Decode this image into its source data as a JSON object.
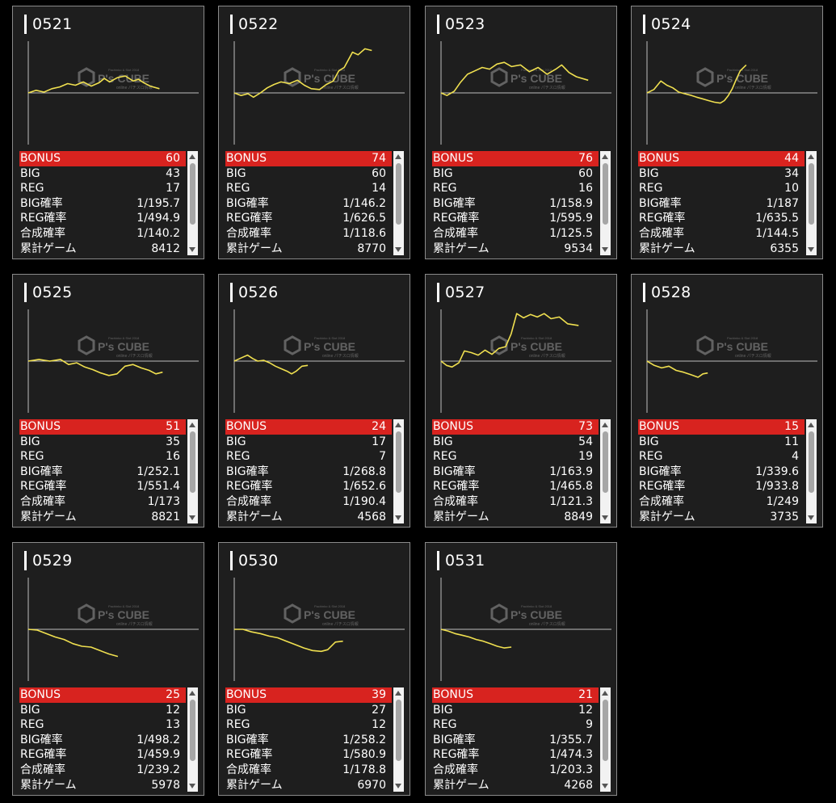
{
  "labels": {
    "bonus": "BONUS",
    "big": "BIG",
    "reg": "REG",
    "big_rate": "BIG確率",
    "reg_rate": "REG確率",
    "total_rate": "合成確率",
    "games": "累計ゲーム"
  },
  "watermark": {
    "brand": "P's CUBE",
    "top": "Pachinko & Slot 2018",
    "sub": "online パチスロ情報"
  },
  "colors": {
    "bonus_bar": "#d8231f",
    "graph_line": "#f0e050",
    "baseline": "#bfbfbf"
  },
  "machines": [
    {
      "id": "0521",
      "bonus": "60",
      "big": "43",
      "reg": "17",
      "big_rate": "1/195.7",
      "reg_rate": "1/494.9",
      "total_rate": "1/140.2",
      "games": "8412"
    },
    {
      "id": "0522",
      "bonus": "74",
      "big": "60",
      "reg": "14",
      "big_rate": "1/146.2",
      "reg_rate": "1/626.5",
      "total_rate": "1/118.6",
      "games": "8770"
    },
    {
      "id": "0523",
      "bonus": "76",
      "big": "60",
      "reg": "16",
      "big_rate": "1/158.9",
      "reg_rate": "1/595.9",
      "total_rate": "1/125.5",
      "games": "9534"
    },
    {
      "id": "0524",
      "bonus": "44",
      "big": "34",
      "reg": "10",
      "big_rate": "1/187",
      "reg_rate": "1/635.5",
      "total_rate": "1/144.5",
      "games": "6355"
    },
    {
      "id": "0525",
      "bonus": "51",
      "big": "35",
      "reg": "16",
      "big_rate": "1/252.1",
      "reg_rate": "1/551.4",
      "total_rate": "1/173",
      "games": "8821"
    },
    {
      "id": "0526",
      "bonus": "24",
      "big": "17",
      "reg": "7",
      "big_rate": "1/268.8",
      "reg_rate": "1/652.6",
      "total_rate": "1/190.4",
      "games": "4568"
    },
    {
      "id": "0527",
      "bonus": "73",
      "big": "54",
      "reg": "19",
      "big_rate": "1/163.9",
      "reg_rate": "1/465.8",
      "total_rate": "1/121.3",
      "games": "8849"
    },
    {
      "id": "0528",
      "bonus": "15",
      "big": "11",
      "reg": "4",
      "big_rate": "1/339.6",
      "reg_rate": "1/933.8",
      "total_rate": "1/249",
      "games": "3735"
    },
    {
      "id": "0529",
      "bonus": "25",
      "big": "12",
      "reg": "13",
      "big_rate": "1/498.2",
      "reg_rate": "1/459.9",
      "total_rate": "1/239.2",
      "games": "5978"
    },
    {
      "id": "0530",
      "bonus": "39",
      "big": "27",
      "reg": "12",
      "big_rate": "1/258.2",
      "reg_rate": "1/580.9",
      "total_rate": "1/178.8",
      "games": "6970"
    },
    {
      "id": "0531",
      "bonus": "21",
      "big": "12",
      "reg": "9",
      "big_rate": "1/355.7",
      "reg_rate": "1/474.3",
      "total_rate": "1/203.3",
      "games": "4268"
    }
  ],
  "graphs": [
    [
      [
        0,
        0
      ],
      [
        0.06,
        3
      ],
      [
        0.12,
        1
      ],
      [
        0.18,
        5
      ],
      [
        0.24,
        7
      ],
      [
        0.3,
        11
      ],
      [
        0.36,
        9
      ],
      [
        0.42,
        13
      ],
      [
        0.48,
        8
      ],
      [
        0.54,
        12
      ],
      [
        0.58,
        17
      ],
      [
        0.62,
        13
      ],
      [
        0.68,
        18
      ],
      [
        0.74,
        20
      ],
      [
        0.8,
        14
      ],
      [
        0.84,
        16
      ],
      [
        0.88,
        12
      ],
      [
        0.93,
        8
      ],
      [
        1,
        5
      ]
    ],
    [
      [
        0,
        0
      ],
      [
        0.05,
        -3
      ],
      [
        0.1,
        -1
      ],
      [
        0.14,
        -5
      ],
      [
        0.19,
        0
      ],
      [
        0.24,
        6
      ],
      [
        0.29,
        10
      ],
      [
        0.34,
        13
      ],
      [
        0.4,
        11
      ],
      [
        0.46,
        15
      ],
      [
        0.51,
        9
      ],
      [
        0.56,
        5
      ],
      [
        0.62,
        4
      ],
      [
        0.67,
        10
      ],
      [
        0.72,
        14
      ],
      [
        0.76,
        26
      ],
      [
        0.8,
        30
      ],
      [
        0.86,
        48
      ],
      [
        0.9,
        45
      ],
      [
        0.95,
        52
      ],
      [
        1,
        50
      ]
    ],
    [
      [
        0,
        0
      ],
      [
        0.04,
        -3
      ],
      [
        0.09,
        2
      ],
      [
        0.13,
        12
      ],
      [
        0.18,
        22
      ],
      [
        0.23,
        26
      ],
      [
        0.28,
        30
      ],
      [
        0.33,
        28
      ],
      [
        0.38,
        34
      ],
      [
        0.43,
        36
      ],
      [
        0.48,
        31
      ],
      [
        0.54,
        33
      ],
      [
        0.6,
        25
      ],
      [
        0.66,
        30
      ],
      [
        0.72,
        22
      ],
      [
        0.78,
        28
      ],
      [
        0.82,
        33
      ],
      [
        0.87,
        24
      ],
      [
        0.92,
        19
      ],
      [
        1,
        15
      ]
    ],
    [
      [
        0,
        0
      ],
      [
        0.07,
        4
      ],
      [
        0.14,
        14
      ],
      [
        0.2,
        9
      ],
      [
        0.26,
        6
      ],
      [
        0.32,
        1
      ],
      [
        0.38,
        -1
      ],
      [
        0.45,
        -3
      ],
      [
        0.5,
        -5
      ],
      [
        0.56,
        -7
      ],
      [
        0.62,
        -9
      ],
      [
        0.68,
        -11
      ],
      [
        0.74,
        -12
      ],
      [
        0.78,
        -9
      ],
      [
        0.82,
        -3
      ],
      [
        0.86,
        5
      ],
      [
        0.9,
        16
      ],
      [
        0.94,
        26
      ],
      [
        1,
        33
      ]
    ],
    [
      [
        0,
        0
      ],
      [
        0.08,
        2
      ],
      [
        0.16,
        0
      ],
      [
        0.24,
        2
      ],
      [
        0.3,
        -4
      ],
      [
        0.36,
        -2
      ],
      [
        0.42,
        -7
      ],
      [
        0.48,
        -10
      ],
      [
        0.54,
        -14
      ],
      [
        0.6,
        -17
      ],
      [
        0.66,
        -15
      ],
      [
        0.72,
        -6
      ],
      [
        0.78,
        -4
      ],
      [
        0.84,
        -8
      ],
      [
        0.9,
        -11
      ],
      [
        0.95,
        -15
      ],
      [
        1,
        -13
      ]
    ],
    [
      [
        0,
        0
      ],
      [
        0.1,
        4
      ],
      [
        0.18,
        7
      ],
      [
        0.25,
        3
      ],
      [
        0.32,
        0
      ],
      [
        0.4,
        1
      ],
      [
        0.48,
        -2
      ],
      [
        0.56,
        -6
      ],
      [
        0.64,
        -9
      ],
      [
        0.72,
        -12
      ],
      [
        0.78,
        -15
      ],
      [
        0.84,
        -12
      ],
      [
        0.92,
        -6
      ],
      [
        1,
        -5
      ]
    ],
    [
      [
        0,
        0
      ],
      [
        0.04,
        -5
      ],
      [
        0.08,
        -7
      ],
      [
        0.13,
        -2
      ],
      [
        0.17,
        12
      ],
      [
        0.22,
        10
      ],
      [
        0.27,
        7
      ],
      [
        0.32,
        13
      ],
      [
        0.37,
        8
      ],
      [
        0.42,
        15
      ],
      [
        0.47,
        17
      ],
      [
        0.51,
        32
      ],
      [
        0.55,
        56
      ],
      [
        0.6,
        51
      ],
      [
        0.65,
        55
      ],
      [
        0.7,
        52
      ],
      [
        0.75,
        56
      ],
      [
        0.8,
        50
      ],
      [
        0.86,
        52
      ],
      [
        0.92,
        44
      ],
      [
        1,
        42
      ]
    ],
    [
      [
        0,
        0
      ],
      [
        0.12,
        -5
      ],
      [
        0.24,
        -8
      ],
      [
        0.36,
        -6
      ],
      [
        0.48,
        -11
      ],
      [
        0.6,
        -13
      ],
      [
        0.72,
        -16
      ],
      [
        0.84,
        -19
      ],
      [
        0.92,
        -15
      ],
      [
        1,
        -14
      ]
    ],
    [
      [
        0,
        0
      ],
      [
        0.1,
        -1
      ],
      [
        0.2,
        -5
      ],
      [
        0.3,
        -9
      ],
      [
        0.4,
        -12
      ],
      [
        0.5,
        -17
      ],
      [
        0.6,
        -20
      ],
      [
        0.7,
        -21
      ],
      [
        0.8,
        -25
      ],
      [
        0.9,
        -29
      ],
      [
        1,
        -32
      ]
    ],
    [
      [
        0,
        0
      ],
      [
        0.08,
        0
      ],
      [
        0.16,
        -3
      ],
      [
        0.24,
        -5
      ],
      [
        0.32,
        -8
      ],
      [
        0.4,
        -10
      ],
      [
        0.48,
        -14
      ],
      [
        0.56,
        -18
      ],
      [
        0.64,
        -22
      ],
      [
        0.72,
        -25
      ],
      [
        0.8,
        -26
      ],
      [
        0.86,
        -24
      ],
      [
        0.93,
        -15
      ],
      [
        1,
        -14
      ]
    ],
    [
      [
        0,
        0
      ],
      [
        0.1,
        -2
      ],
      [
        0.2,
        -5
      ],
      [
        0.3,
        -7
      ],
      [
        0.4,
        -9
      ],
      [
        0.5,
        -12
      ],
      [
        0.6,
        -14
      ],
      [
        0.7,
        -17
      ],
      [
        0.8,
        -20
      ],
      [
        0.9,
        -22
      ],
      [
        1,
        -21
      ]
    ]
  ],
  "graph_extent": [
    0.82,
    0.86,
    0.92,
    0.62,
    0.84,
    0.46,
    0.86,
    0.38,
    0.56,
    0.68,
    0.44
  ]
}
